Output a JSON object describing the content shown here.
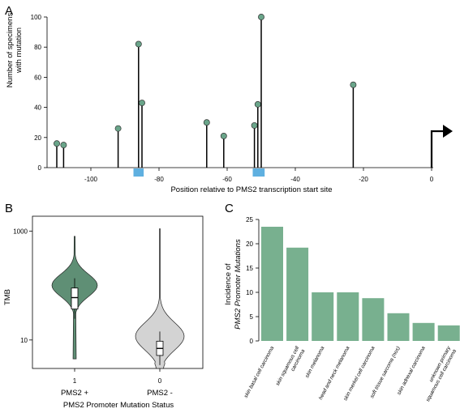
{
  "panels": {
    "a": "A",
    "b": "B",
    "c": "C"
  },
  "colors": {
    "lollipop_fill": "#6aa58a",
    "bar_fill": "#78b08f",
    "motif_box": "#5fb0e0",
    "violin_pos": "#5f8f75",
    "violin_neg": "#d3d3d3"
  },
  "chart_data": [
    {
      "type": "scatter",
      "subtype": "lollipop",
      "xlabel": "Position relative to PMS2 transcription start site",
      "ylabel_line1": "Number of specimens",
      "ylabel_line2": "with mutation",
      "xlim": [
        -114,
        0
      ],
      "ylim": [
        0,
        100
      ],
      "x_ticks": [
        "-100",
        "-80",
        "-60",
        "-40",
        "-20",
        "0"
      ],
      "y_ticks": [
        "0",
        "20",
        "40",
        "60",
        "80",
        "100"
      ],
      "points": [
        {
          "x": -110,
          "y": 16
        },
        {
          "x": -108,
          "y": 15
        },
        {
          "x": -92,
          "y": 26
        },
        {
          "x": -86,
          "y": 82
        },
        {
          "x": -85,
          "y": 43
        },
        {
          "x": -66,
          "y": 30
        },
        {
          "x": -61,
          "y": 21
        },
        {
          "x": -52,
          "y": 28
        },
        {
          "x": -51,
          "y": 42
        },
        {
          "x": -50,
          "y": 100
        },
        {
          "x": -23,
          "y": 55
        }
      ],
      "motif_boxes": [
        {
          "x_start": -87.5,
          "x_end": -84.5
        },
        {
          "x_start": -52.5,
          "x_end": -49
        }
      ],
      "tss_x": 0
    },
    {
      "type": "violin",
      "xlabel": "PMS2 Promoter Mutation Status",
      "ylabel": "TMB",
      "yscale": "log",
      "ylim": [
        3,
        1200
      ],
      "y_ticks": [
        "10",
        "1000"
      ],
      "categories": [
        {
          "tick": "1",
          "label": "PMS2 +"
        },
        {
          "tick": "0",
          "label": "PMS2 -"
        }
      ],
      "groups": [
        {
          "median": 60,
          "q1": 37,
          "q3": 90,
          "min": 4.5,
          "max": 800
        },
        {
          "median": 7,
          "q1": 5.2,
          "q3": 9.5,
          "min": 3,
          "max": 1100
        }
      ]
    },
    {
      "type": "bar",
      "ylabel_line1": "Incidence of",
      "ylabel_line2": "PMS2 Promoter Mutations",
      "ylim": [
        0,
        25
      ],
      "y_ticks": [
        "0",
        "5",
        "10",
        "15",
        "20",
        "25"
      ],
      "categories": [
        [
          "skin basal cell carcinoma"
        ],
        [
          "skin squamous cell",
          "carcinoma"
        ],
        [
          "skin melanoma"
        ],
        [
          "head and neck melanoma"
        ],
        [
          "skin merkel cell carcinoma"
        ],
        [
          "soft tissue sarcoma (nos)"
        ],
        [
          "skin adnexal carcinoma"
        ],
        [
          "unknown primary",
          "squamous cell carcinoma"
        ]
      ],
      "values": [
        23.5,
        19.2,
        10,
        10,
        8.8,
        5.7,
        3.7,
        3.2
      ]
    }
  ]
}
